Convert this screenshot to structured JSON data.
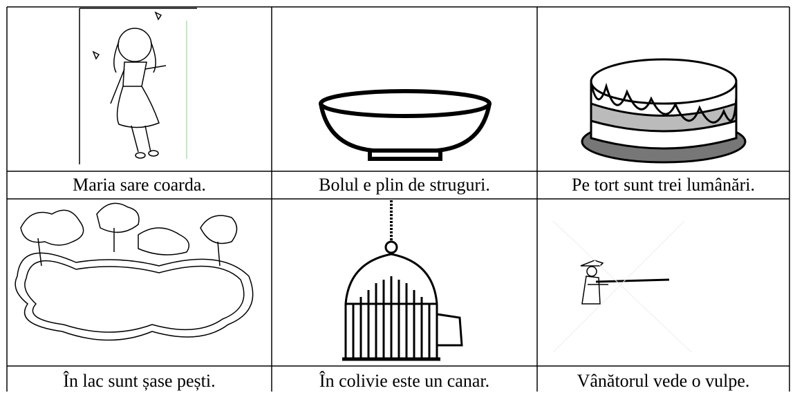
{
  "table": {
    "rows": [
      [
        "Maria sare coarda.",
        "Bolul e plin de struguri.",
        "Pe tort sunt trei lumânări."
      ],
      [
        "În lac sunt șase pești.",
        "În colivie este un canar.",
        "Vânătorul vede o vulpe."
      ]
    ]
  }
}
